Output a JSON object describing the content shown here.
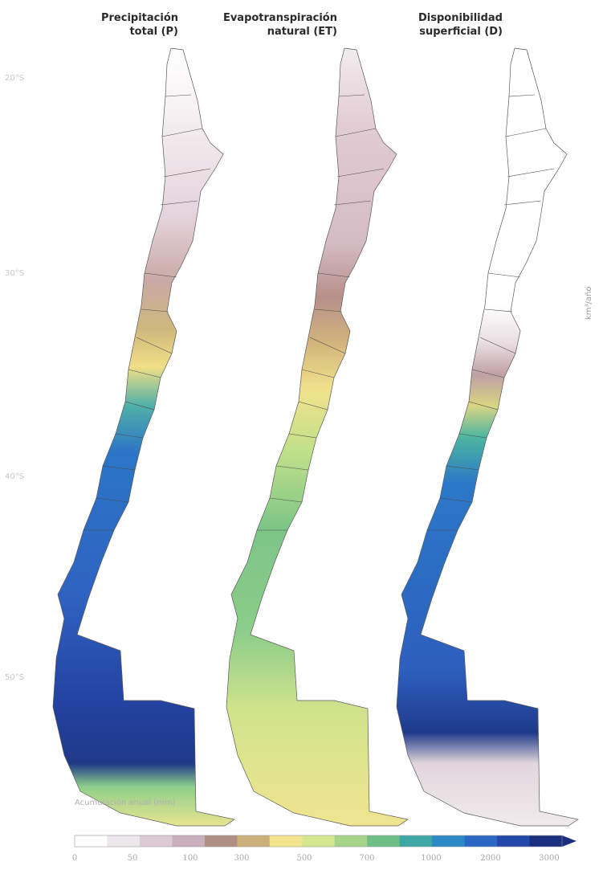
{
  "panels": [
    {
      "title_line1": "Precipitación",
      "title_line2": "total (P)"
    },
    {
      "title_line1": "Evapotranspiración",
      "title_line2": "natural (ET)"
    },
    {
      "title_line1": "Disponibilidad",
      "title_line2": "superficial (D)"
    }
  ],
  "latitude_labels": [
    "20°S",
    "30°S",
    "40°S",
    "50°S"
  ],
  "units_label": "km³/año",
  "colorbar": {
    "title": "Acumulación anual (mm)",
    "ticks": [
      "0",
      "50",
      "100",
      "300",
      "500",
      "700",
      "1000",
      "2000",
      "3000"
    ],
    "colors": [
      "#ffffff",
      "#ece7ea",
      "#dccbd3",
      "#c9aebb",
      "#b08f86",
      "#cbb07a",
      "#f2e58e",
      "#d6e68e",
      "#a5d48a",
      "#6ebf86",
      "#3da7a5",
      "#2b8ac6",
      "#2c67c4",
      "#2348a8",
      "#1a2f80"
    ]
  }
}
